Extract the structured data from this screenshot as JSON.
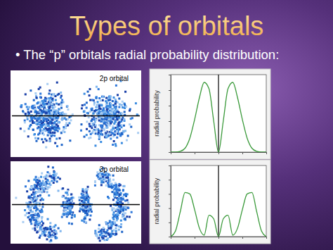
{
  "slide": {
    "title": "Types of orbitals",
    "bullet": "• The “p” orbitals radial probability distribution:"
  },
  "images": [
    {
      "label": "2p orbital"
    },
    {
      "label": "3p orbital"
    }
  ],
  "chart_data": [
    {
      "type": "line",
      "y_label": "radial probability",
      "tick_labels": false,
      "x": [
        -10,
        -9,
        -8,
        -7,
        -6,
        -5,
        -4,
        -3,
        -2,
        -1,
        0,
        1,
        2,
        3,
        4,
        5,
        6,
        7,
        8,
        9,
        10
      ],
      "series": [
        {
          "color": "#3a9a3a",
          "values": [
            0,
            0,
            0.01,
            0.05,
            0.18,
            0.42,
            0.7,
            0.9,
            0.82,
            0.4,
            0,
            0.4,
            0.82,
            0.9,
            0.7,
            0.42,
            0.18,
            0.05,
            0.01,
            0,
            0
          ]
        }
      ],
      "xlim": [
        -10,
        10
      ],
      "xticks": [
        -10,
        -5,
        0,
        5,
        10
      ],
      "ylim": [
        0,
        1
      ],
      "yticks": [
        0,
        0.2,
        0.4,
        0.6,
        0.8,
        1
      ],
      "center_line": 0
    },
    {
      "type": "line",
      "y_label": "radial probability",
      "tick_labels": false,
      "x": [
        -10,
        -9,
        -8,
        -7,
        -6,
        -5,
        -4,
        -3,
        -2,
        -1,
        0,
        1,
        2,
        3,
        4,
        5,
        6,
        7,
        8,
        9,
        10
      ],
      "series": [
        {
          "color": "#3a9a3a",
          "values": [
            0,
            0.08,
            0.35,
            0.62,
            0.6,
            0.38,
            0.12,
            0.02,
            0.3,
            0.25,
            0,
            0.25,
            0.3,
            0.02,
            0.12,
            0.38,
            0.6,
            0.62,
            0.35,
            0.08,
            0
          ]
        }
      ],
      "xlim": [
        -10,
        10
      ],
      "xticks": [
        -10,
        -5,
        0,
        5,
        10
      ],
      "ylim": [
        0,
        1
      ],
      "yticks": [
        0,
        0.2,
        0.4,
        0.6,
        0.8,
        1
      ],
      "center_line": 0
    }
  ]
}
